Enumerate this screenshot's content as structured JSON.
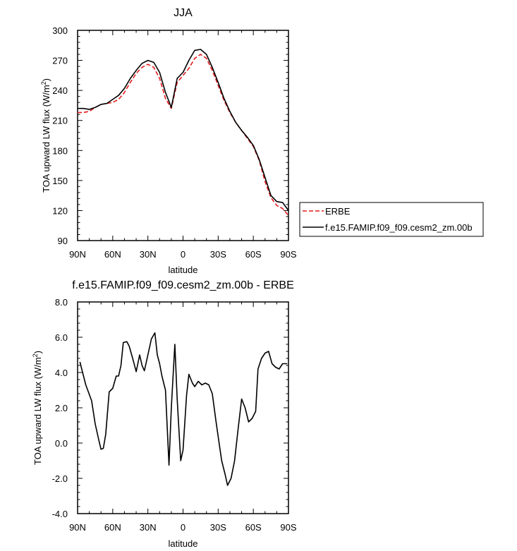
{
  "chart_data": [
    {
      "type": "line",
      "title": "JJA",
      "xlabel": "latitude",
      "ylabel": "TOA upward LW flux (W/m",
      "ylabel_sup": "2",
      "ylabel_close": ")",
      "xlim": [
        -90,
        90
      ],
      "ylim": [
        90,
        300
      ],
      "x_ticks": [
        -90,
        -60,
        -30,
        0,
        30,
        60,
        90
      ],
      "x_tick_labels": [
        "90N",
        "60N",
        "30N",
        "0",
        "30S",
        "60S",
        "90S"
      ],
      "y_ticks": [
        90,
        120,
        150,
        180,
        210,
        240,
        270,
        300
      ],
      "y_tick_labels": [
        "90",
        "120",
        "150",
        "180",
        "210",
        "240",
        "270",
        "300"
      ],
      "grid": false,
      "legend_placement": "outside-right",
      "series": [
        {
          "name": "ERBE",
          "color": "#e41a1c",
          "dash": "dashed",
          "x": [
            -90,
            -85,
            -80,
            -75,
            -70,
            -65,
            -60,
            -55,
            -50,
            -45,
            -40,
            -35,
            -30,
            -25,
            -20,
            -15,
            -10,
            -5,
            0,
            5,
            10,
            15,
            20,
            25,
            30,
            35,
            40,
            45,
            50,
            55,
            60,
            65,
            70,
            75,
            80,
            85,
            90
          ],
          "y": [
            218,
            218,
            219,
            223,
            226,
            227,
            228,
            231,
            238,
            248,
            257,
            263,
            266,
            263,
            252,
            232,
            222,
            248,
            255,
            262,
            272,
            276,
            272,
            260,
            245,
            230,
            218,
            208,
            200,
            192,
            184,
            170,
            149,
            133,
            125,
            122,
            115
          ]
        },
        {
          "name": "f.e15.FAMIP.f09_f09.cesm2_zm.00b",
          "color": "#000000",
          "dash": "solid",
          "x": [
            -90,
            -85,
            -80,
            -75,
            -70,
            -65,
            -60,
            -55,
            -50,
            -45,
            -40,
            -35,
            -30,
            -25,
            -20,
            -15,
            -10,
            -5,
            0,
            5,
            10,
            15,
            20,
            25,
            30,
            35,
            40,
            45,
            50,
            55,
            60,
            65,
            70,
            75,
            80,
            85,
            90
          ],
          "y": [
            222,
            222,
            221,
            223,
            226,
            227,
            231,
            235,
            242,
            252,
            260,
            267,
            270,
            268,
            258,
            238,
            223,
            252,
            258,
            270,
            280,
            281,
            276,
            263,
            248,
            232,
            219,
            208,
            200,
            193,
            185,
            171,
            153,
            135,
            129,
            128,
            120
          ]
        }
      ]
    },
    {
      "type": "line",
      "title": "f.e15.FAMIP.f09_f09.cesm2_zm.00b - ERBE",
      "xlabel": "latitude",
      "ylabel": "TOA upward LW flux (W/m",
      "ylabel_sup": "2",
      "ylabel_close": ")",
      "xlim": [
        -90,
        90
      ],
      "ylim": [
        -4,
        8
      ],
      "x_ticks": [
        -90,
        -60,
        -30,
        0,
        30,
        60,
        90
      ],
      "x_tick_labels": [
        "90N",
        "60N",
        "30N",
        "0",
        "30S",
        "60S",
        "90S"
      ],
      "y_ticks": [
        -4,
        -2,
        0,
        2,
        4,
        6,
        8
      ],
      "y_tick_labels": [
        "-4.0",
        "-2.0",
        "0.0",
        "2.0",
        "4.0",
        "6.0",
        "8.0"
      ],
      "grid": false,
      "series": [
        {
          "color": "#000000",
          "dash": "solid",
          "x": [
            -88,
            -83,
            -78,
            -75,
            -72,
            -70,
            -68,
            -66,
            -63,
            -60,
            -57,
            -55,
            -53,
            -51,
            -48,
            -46,
            -43,
            -40,
            -37,
            -35,
            -33,
            -30,
            -27,
            -24,
            -22,
            -20,
            -18,
            -15,
            -12,
            -10,
            -7,
            -5,
            -2,
            0,
            3,
            5,
            8,
            10,
            13,
            16,
            19,
            22,
            25,
            28,
            31,
            33,
            36,
            38,
            41,
            44,
            47,
            50,
            53,
            56,
            59,
            62,
            64,
            67,
            70,
            73,
            76,
            79,
            82,
            85,
            87,
            89
          ],
          "y": [
            4.6,
            3.3,
            2.4,
            1.1,
            0.2,
            -0.35,
            -0.3,
            0.5,
            2.9,
            3.1,
            3.8,
            3.8,
            4.4,
            5.7,
            5.75,
            5.5,
            4.8,
            4.05,
            5.0,
            4.4,
            4.1,
            5.0,
            5.9,
            6.25,
            5.0,
            4.5,
            3.8,
            3.0,
            -1.25,
            2.0,
            5.6,
            2.5,
            -1.0,
            -0.4,
            2.7,
            3.9,
            3.4,
            3.2,
            3.5,
            3.3,
            3.4,
            3.3,
            2.8,
            1.3,
            -0.1,
            -1.0,
            -1.8,
            -2.4,
            -2.0,
            -1.0,
            0.8,
            2.5,
            2.0,
            1.2,
            1.4,
            1.8,
            4.2,
            4.8,
            5.1,
            5.2,
            4.5,
            4.3,
            4.2,
            4.5,
            4.5,
            4.5
          ]
        }
      ]
    }
  ]
}
